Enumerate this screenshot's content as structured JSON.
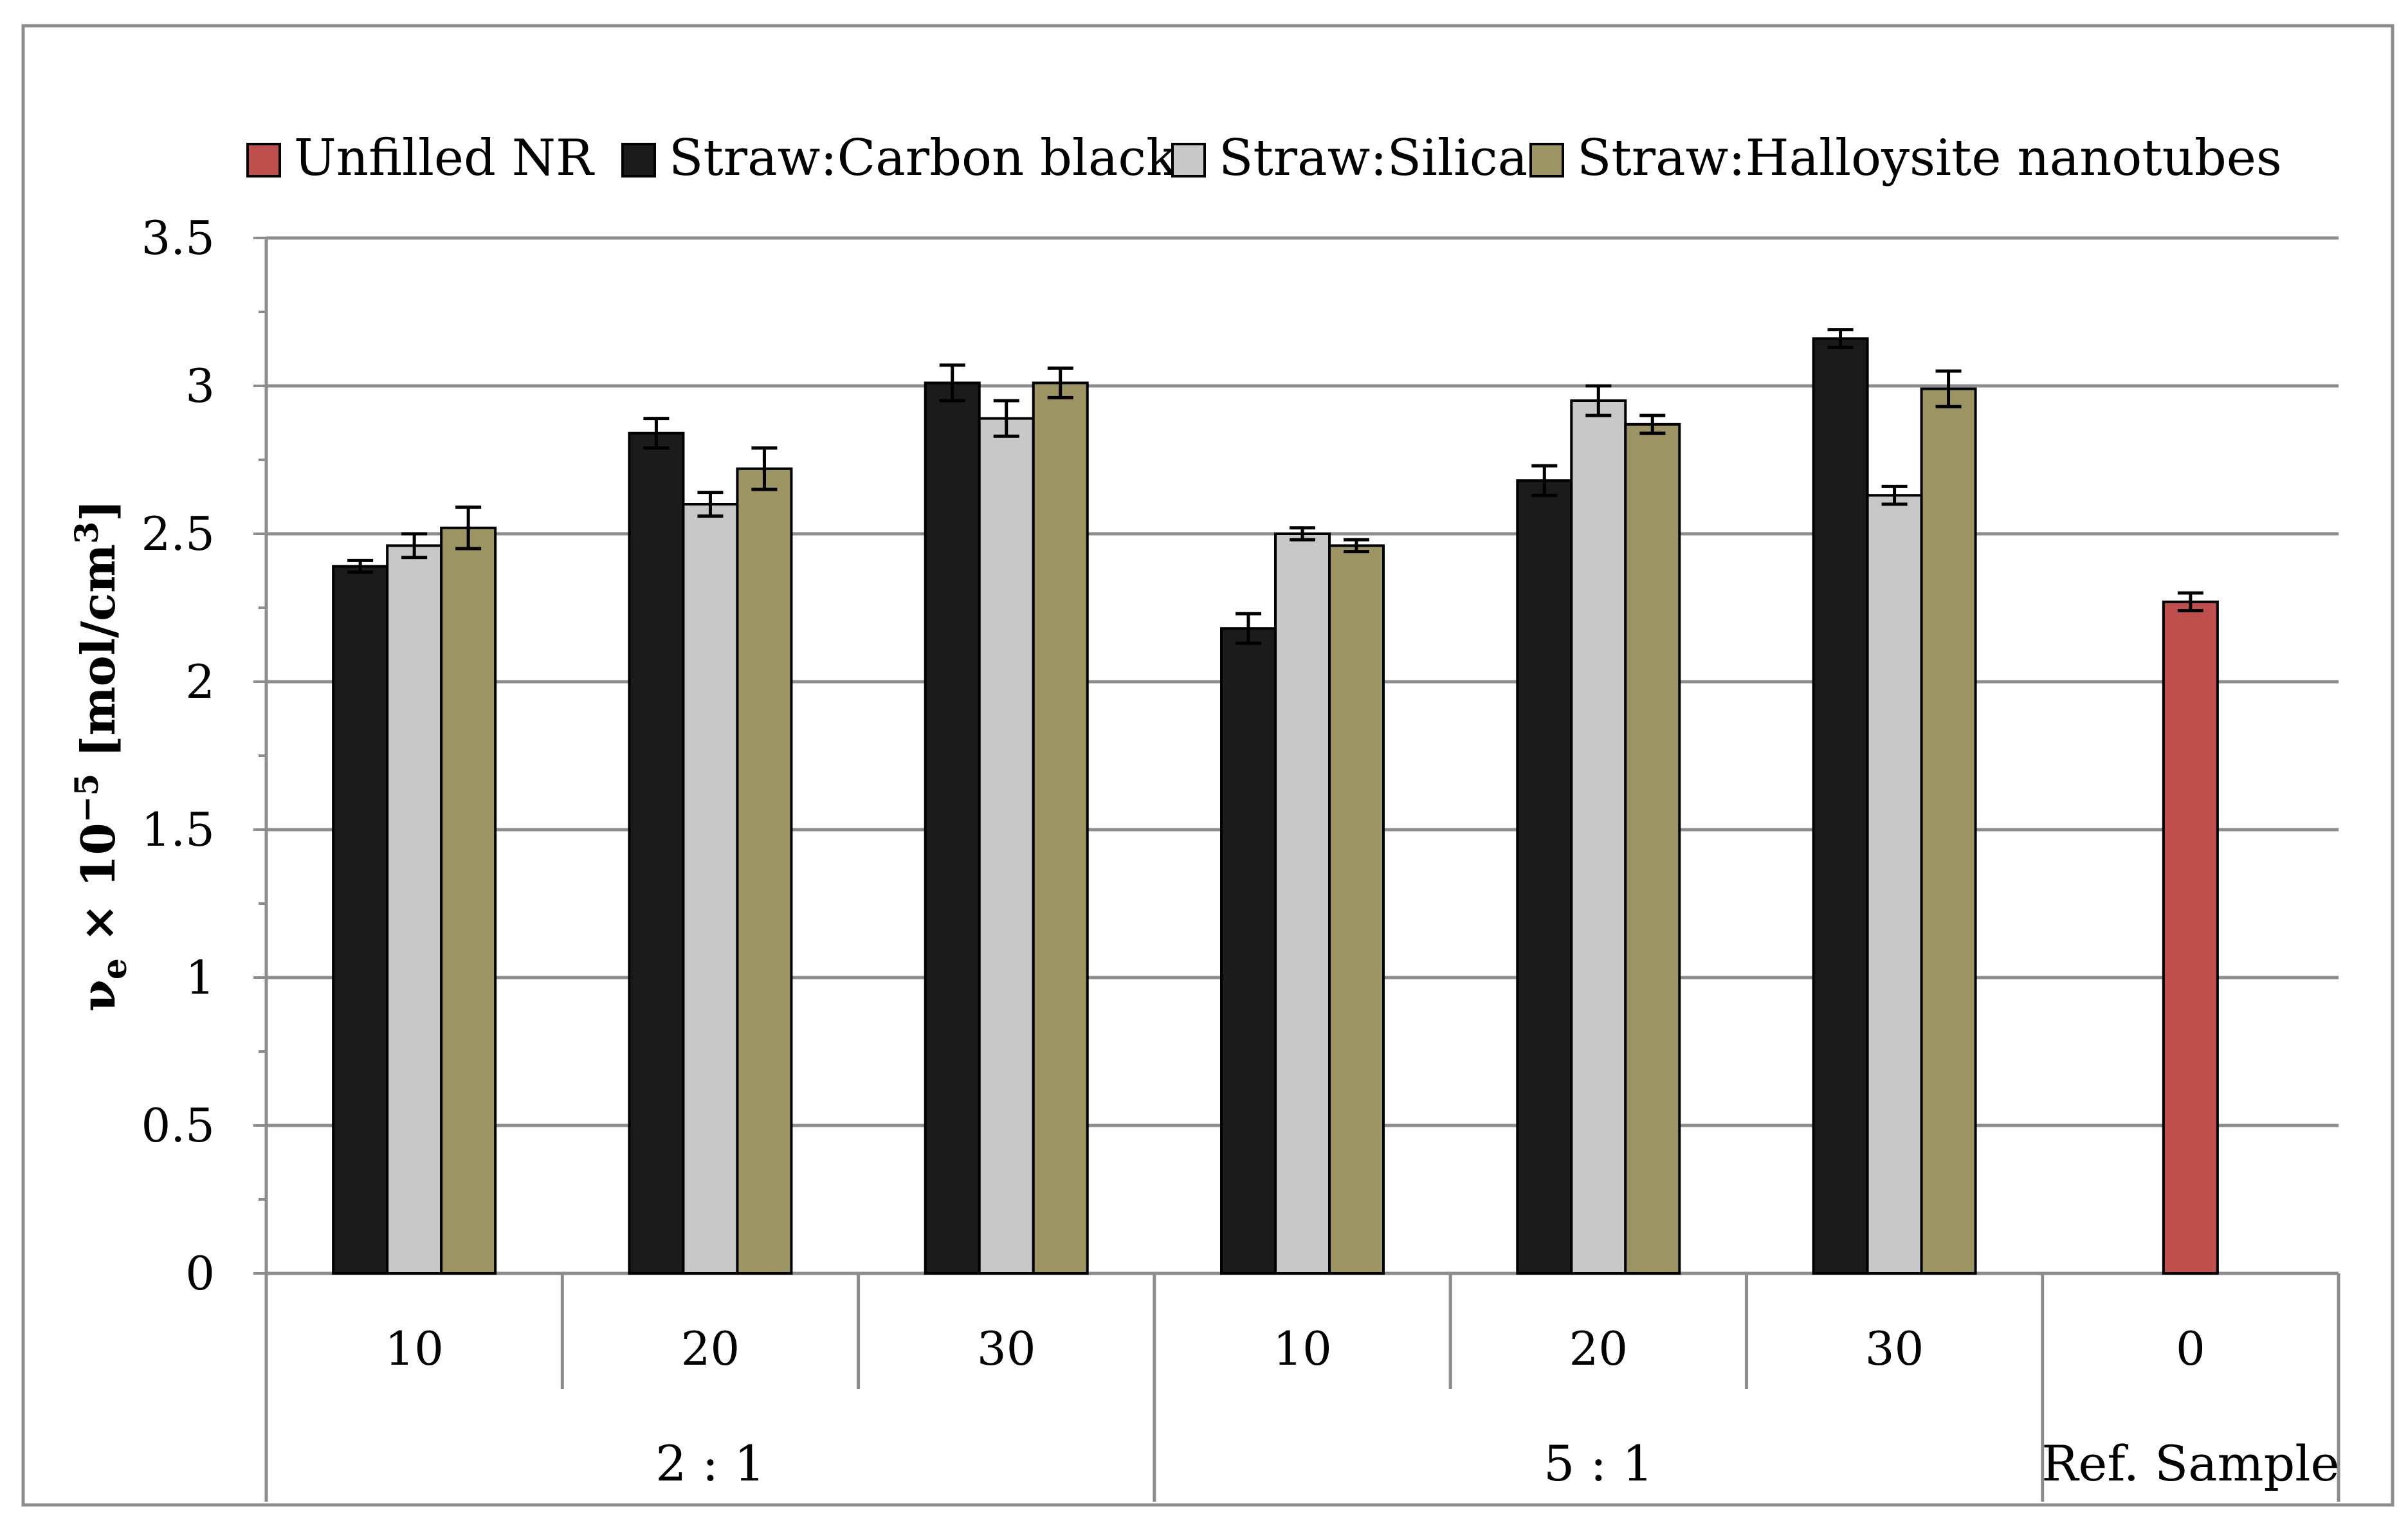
{
  "chart_data": {
    "type": "bar",
    "ylabel": "νₑ × 10⁻⁵ [mol/cm³]",
    "ylabel_parts": {
      "base": "ν",
      "sub": "e",
      "mid": " × 10",
      "exp": "−5",
      "tail": " [mol/cm",
      "tail_exp": "3",
      "end": "]"
    },
    "ylim": [
      0,
      3.5
    ],
    "y_ticks": [
      "0",
      "0.5",
      "1",
      "1.5",
      "2",
      "2.5",
      "3",
      "3.5"
    ],
    "y_tick_values": [
      0,
      0.5,
      1,
      1.5,
      2,
      2.5,
      3,
      3.5
    ],
    "grid": true,
    "legend_position": "top",
    "categories": [
      "10",
      "20",
      "30",
      "10",
      "20",
      "30",
      "0"
    ],
    "category_groups": [
      {
        "label": "2 : 1",
        "span": 3
      },
      {
        "label": "5 : 1",
        "span": 3
      },
      {
        "label": "Ref. Sample",
        "span": 1
      }
    ],
    "series": [
      {
        "name": "Unfilled NR",
        "color": "#c0504d",
        "values": [
          null,
          null,
          null,
          null,
          null,
          null,
          2.27
        ],
        "errors": [
          null,
          null,
          null,
          null,
          null,
          null,
          0.03
        ]
      },
      {
        "name": "Straw:Carbon black",
        "color": "#1b1b1b",
        "values": [
          2.39,
          2.84,
          3.01,
          2.18,
          2.68,
          3.16,
          null
        ],
        "errors": [
          0.02,
          0.05,
          0.06,
          0.05,
          0.05,
          0.03,
          null
        ]
      },
      {
        "name": "Straw:Silica",
        "color": "#c8c8c8",
        "values": [
          2.46,
          2.6,
          2.89,
          2.5,
          2.95,
          2.63,
          null
        ],
        "errors": [
          0.04,
          0.04,
          0.06,
          0.02,
          0.05,
          0.03,
          null
        ]
      },
      {
        "name": "Straw:Halloysite nanotubes",
        "color": "#9c9462",
        "values": [
          2.52,
          2.72,
          3.01,
          2.46,
          2.87,
          2.99,
          null
        ],
        "errors": [
          0.07,
          0.07,
          0.05,
          0.02,
          0.03,
          0.06,
          null
        ]
      }
    ]
  }
}
